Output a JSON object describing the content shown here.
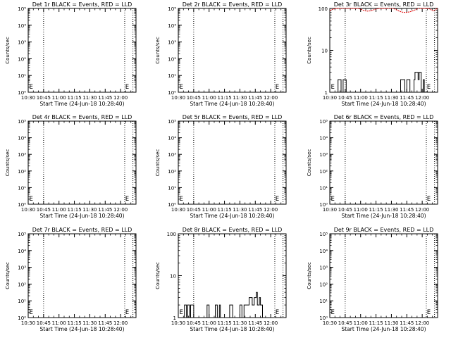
{
  "chart_data": [
    {
      "type": "line",
      "title": "Det 1r BLACK = Events, RED = LLD",
      "ylabel": "Counts/sec",
      "xlabel": "Start Time (24-Jun-18 10:28:40)",
      "yscale": "log",
      "yticks": [
        "10⁰",
        "10¹",
        "10²",
        "10³",
        "10⁴",
        "10⁵"
      ],
      "ylim": [
        1,
        100000
      ],
      "xticks": [
        "10:30",
        "10:45",
        "11:00",
        "11:15",
        "11:30",
        "11:45",
        "12:00"
      ],
      "xlim_minutes": [
        30,
        135
      ],
      "vlines_minutes": [
        45,
        124,
        132
      ],
      "markers": [
        {
          "text": "E",
          "x_min": 31
        },
        {
          "text": "E",
          "x_min": 124.5
        }
      ],
      "series": []
    },
    {
      "type": "line",
      "title": "Det 2r BLACK = Events, RED = LLD",
      "ylabel": "Counts/sec",
      "xlabel": "Start Time (24-Jun-18 10:28:40)",
      "yscale": "log",
      "yticks": [
        "10⁰",
        "10¹",
        "10²",
        "10³",
        "10⁴",
        "10⁵"
      ],
      "ylim": [
        1,
        100000
      ],
      "xticks": [
        "10:30",
        "10:45",
        "11:00",
        "11:15",
        "11:30",
        "11:45",
        "12:00"
      ],
      "xlim_minutes": [
        30,
        135
      ],
      "vlines_minutes": [
        45,
        124,
        132
      ],
      "markers": [
        {
          "text": "E",
          "x_min": 31
        },
        {
          "text": "E",
          "x_min": 124.5
        }
      ],
      "series": []
    },
    {
      "type": "line",
      "title": "Det 3r BLACK = Events, RED = LLD",
      "ylabel": "Counts/sec",
      "xlabel": "Start Time (24-Jun-18 10:28:40)",
      "yscale": "log",
      "yticks": [
        "1",
        "10",
        "100"
      ],
      "ylim": [
        1,
        100
      ],
      "xticks": [
        "10:30",
        "10:45",
        "11:00",
        "11:15",
        "11:30",
        "11:45",
        "12:00"
      ],
      "xlim_minutes": [
        30,
        135
      ],
      "vlines_minutes": [
        45,
        124,
        132
      ],
      "markers": [
        {
          "text": "E",
          "x_min": 31
        },
        {
          "text": "E",
          "x_min": 124.5
        }
      ],
      "series": [
        {
          "role": "events",
          "color": "#000000",
          "points": [
            [
              30,
              1
            ],
            [
              38,
              1
            ],
            [
              38,
              2
            ],
            [
              41,
              2
            ],
            [
              41,
              1
            ],
            [
              43,
              1
            ],
            [
              43,
              2
            ],
            [
              46,
              2
            ],
            [
              46,
              1
            ],
            [
              99,
              1
            ],
            [
              99,
              2
            ],
            [
              103,
              2
            ],
            [
              103,
              1
            ],
            [
              105,
              1
            ],
            [
              105,
              2
            ],
            [
              108,
              2
            ],
            [
              108,
              1
            ],
            [
              112,
              1
            ],
            [
              112,
              2
            ],
            [
              113,
              2
            ],
            [
              113,
              3
            ],
            [
              116,
              3
            ],
            [
              116,
              2
            ],
            [
              117,
              2
            ],
            [
              117,
              3
            ],
            [
              119,
              3
            ],
            [
              119,
              1
            ],
            [
              121,
              1
            ],
            [
              121,
              2
            ],
            [
              122,
              2
            ],
            [
              122,
              1
            ],
            [
              135,
              1
            ]
          ]
        },
        {
          "role": "lld",
          "color": "#e00000",
          "points": [
            [
              30,
              88
            ],
            [
              33,
              96
            ],
            [
              36,
              100
            ],
            [
              58,
              100
            ],
            [
              62,
              92
            ],
            [
              66,
              86
            ],
            [
              70,
              88
            ],
            [
              74,
              95
            ],
            [
              78,
              100
            ],
            [
              92,
              100
            ],
            [
              96,
              90
            ],
            [
              100,
              82
            ],
            [
              104,
              80
            ],
            [
              108,
              83
            ],
            [
              112,
              90
            ],
            [
              116,
              100
            ],
            [
              120,
              100
            ],
            [
              126,
              100
            ],
            [
              129,
              92
            ],
            [
              131,
              88
            ],
            [
              133,
              94
            ],
            [
              135,
              100
            ]
          ]
        }
      ]
    },
    {
      "type": "line",
      "title": "Det 4r BLACK = Events, RED = LLD",
      "ylabel": "Counts/sec",
      "xlabel": "Start Time (24-Jun-18 10:28:40)",
      "yscale": "log",
      "yticks": [
        "10⁰",
        "10¹",
        "10²",
        "10³",
        "10⁴",
        "10⁵"
      ],
      "ylim": [
        1,
        100000
      ],
      "xticks": [
        "10:30",
        "10:45",
        "11:00",
        "11:15",
        "11:30",
        "11:45",
        "12:00"
      ],
      "xlim_minutes": [
        30,
        135
      ],
      "vlines_minutes": [
        45,
        124,
        132
      ],
      "markers": [
        {
          "text": "E",
          "x_min": 31
        },
        {
          "text": "E",
          "x_min": 124.5
        }
      ],
      "series": []
    },
    {
      "type": "line",
      "title": "Det 5r BLACK = Events, RED = LLD",
      "ylabel": "Counts/sec",
      "xlabel": "Start Time (24-Jun-18 10:28:40)",
      "yscale": "log",
      "yticks": [
        "10⁰",
        "10¹",
        "10²",
        "10³",
        "10⁴",
        "10⁵"
      ],
      "ylim": [
        1,
        100000
      ],
      "xticks": [
        "10:30",
        "10:45",
        "11:00",
        "11:15",
        "11:30",
        "11:45",
        "12:00"
      ],
      "xlim_minutes": [
        30,
        135
      ],
      "vlines_minutes": [
        45,
        124,
        132
      ],
      "markers": [
        {
          "text": "E",
          "x_min": 31
        },
        {
          "text": "E",
          "x_min": 124.5
        }
      ],
      "series": []
    },
    {
      "type": "line",
      "title": "Det 6r BLACK = Events, RED = LLD",
      "ylabel": "Counts/sec",
      "xlabel": "Start Time (24-Jun-18 10:28:40)",
      "yscale": "log",
      "yticks": [
        "10⁰",
        "10¹",
        "10²",
        "10³",
        "10⁴",
        "10⁵"
      ],
      "ylim": [
        1,
        100000
      ],
      "xticks": [
        "10:30",
        "10:45",
        "11:00",
        "11:15",
        "11:30",
        "11:45",
        "12:00"
      ],
      "xlim_minutes": [
        30,
        135
      ],
      "vlines_minutes": [
        45,
        124,
        132
      ],
      "markers": [
        {
          "text": "E",
          "x_min": 31
        },
        {
          "text": "E",
          "x_min": 124.5
        }
      ],
      "series": []
    },
    {
      "type": "line",
      "title": "Det 7r BLACK = Events, RED = LLD",
      "ylabel": "Counts/sec",
      "xlabel": "Start Time (24-Jun-18 10:28:40)",
      "yscale": "log",
      "yticks": [
        "10⁰",
        "10¹",
        "10²",
        "10³",
        "10⁴",
        "10⁵"
      ],
      "ylim": [
        1,
        100000
      ],
      "xticks": [
        "10:30",
        "10:45",
        "11:00",
        "11:15",
        "11:30",
        "11:45",
        "12:00"
      ],
      "xlim_minutes": [
        30,
        135
      ],
      "vlines_minutes": [
        45,
        124,
        132
      ],
      "markers": [
        {
          "text": "E",
          "x_min": 31
        },
        {
          "text": "E",
          "x_min": 124.5
        }
      ],
      "series": []
    },
    {
      "type": "line",
      "title": "Det 8r BLACK = Events, RED = LLD",
      "ylabel": "Counts/sec",
      "xlabel": "Start Time (24-Jun-18 10:28:40)",
      "yscale": "log",
      "yticks": [
        "1",
        "10",
        "100"
      ],
      "ylim": [
        1,
        100
      ],
      "xticks": [
        "10:30",
        "10:45",
        "11:00",
        "11:15",
        "11:30",
        "11:45",
        "12:00"
      ],
      "xlim_minutes": [
        30,
        135
      ],
      "vlines_minutes": [
        45,
        124,
        132
      ],
      "markers": [
        {
          "text": "E",
          "x_min": 31
        },
        {
          "text": "E",
          "x_min": 124.5
        }
      ],
      "series": [
        {
          "role": "events",
          "color": "#000000",
          "points": [
            [
              30,
              1
            ],
            [
              36,
              1
            ],
            [
              36,
              2
            ],
            [
              38,
              2
            ],
            [
              38,
              1
            ],
            [
              39,
              1
            ],
            [
              39,
              2
            ],
            [
              41,
              2
            ],
            [
              41,
              1
            ],
            [
              42,
              1
            ],
            [
              42,
              2
            ],
            [
              45,
              2
            ],
            [
              45,
              1
            ],
            [
              58,
              1
            ],
            [
              58,
              2
            ],
            [
              60,
              2
            ],
            [
              60,
              1
            ],
            [
              66,
              1
            ],
            [
              66,
              2
            ],
            [
              68,
              2
            ],
            [
              68,
              1
            ],
            [
              70,
              1
            ],
            [
              70,
              2
            ],
            [
              71,
              2
            ],
            [
              71,
              1
            ],
            [
              80,
              1
            ],
            [
              80,
              2
            ],
            [
              83,
              2
            ],
            [
              83,
              1
            ],
            [
              90,
              1
            ],
            [
              90,
              2
            ],
            [
              92,
              2
            ],
            [
              92,
              1
            ],
            [
              94,
              1
            ],
            [
              94,
              2
            ],
            [
              99,
              2
            ],
            [
              99,
              3
            ],
            [
              102,
              3
            ],
            [
              102,
              2
            ],
            [
              104,
              2
            ],
            [
              104,
              3
            ],
            [
              106,
              3
            ],
            [
              106,
              4
            ],
            [
              107,
              4
            ],
            [
              107,
              2
            ],
            [
              109,
              2
            ],
            [
              109,
              3
            ],
            [
              110,
              3
            ],
            [
              110,
              2
            ],
            [
              112,
              2
            ],
            [
              112,
              1
            ],
            [
              135,
              1
            ]
          ]
        }
      ]
    },
    {
      "type": "line",
      "title": "Det 9r BLACK = Events, RED = LLD",
      "ylabel": "Counts/sec",
      "xlabel": "Start Time (24-Jun-18 10:28:40)",
      "yscale": "log",
      "yticks": [
        "10⁰",
        "10¹",
        "10²",
        "10³",
        "10⁴",
        "10⁵"
      ],
      "ylim": [
        1,
        100000
      ],
      "xticks": [
        "10:30",
        "10:45",
        "11:00",
        "11:15",
        "11:30",
        "11:45",
        "12:00"
      ],
      "xlim_minutes": [
        30,
        135
      ],
      "vlines_minutes": [
        45,
        124,
        132
      ],
      "markers": [
        {
          "text": "E",
          "x_min": 31
        },
        {
          "text": "E",
          "x_min": 124.5
        }
      ],
      "series": []
    }
  ]
}
